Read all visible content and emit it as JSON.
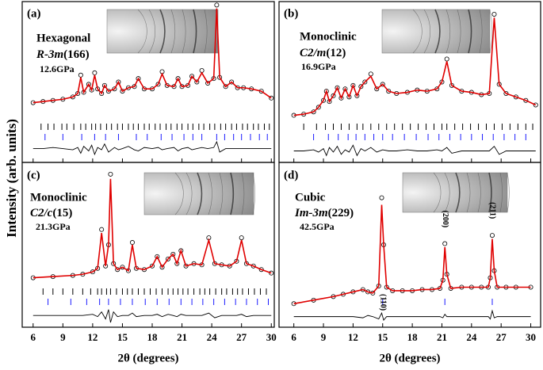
{
  "figure": {
    "ylabel": "Intensity (arb. units)"
  },
  "chart_data": [
    {
      "type": "line",
      "label": "(a)",
      "phase": "Hexagonal",
      "space_group": "R-3m",
      "space_group_number": "(166)",
      "pressure": "12.6GPa",
      "xlim": [
        4.9,
        30.3
      ],
      "xticks": [
        6,
        9,
        12,
        15,
        18,
        21,
        24,
        27,
        30
      ],
      "show_tick_labels": false,
      "ylim": [
        -40,
        100
      ],
      "x": [
        6,
        7,
        8,
        9,
        10,
        10.5,
        10.8,
        11.1,
        11.6,
        11.9,
        12.2,
        12.5,
        12.9,
        13.2,
        13.6,
        14.2,
        14.6,
        15,
        15.6,
        16.2,
        16.6,
        17.2,
        18,
        18.6,
        19,
        19.5,
        20.2,
        20.6,
        21,
        21.6,
        22,
        22.5,
        23,
        23.6,
        24.2,
        24.5,
        24.8,
        25.4,
        26,
        26.6,
        27.2,
        28,
        29,
        30
      ],
      "series": [
        {
          "color": "#000000",
          "marker": "circle",
          "values": [
            12,
            13,
            14,
            15,
            17,
            20,
            36,
            21,
            28,
            23,
            38,
            24,
            20,
            27,
            22,
            24,
            30,
            22,
            25,
            26,
            33,
            24,
            24,
            28,
            39,
            27,
            26,
            33,
            26,
            27,
            35,
            30,
            40,
            29,
            33,
            97,
            34,
            26,
            30,
            25,
            25,
            24,
            22,
            16
          ]
        },
        {
          "color": "#e00000",
          "marker": "line",
          "values": [
            12,
            13,
            14,
            15,
            17,
            20,
            34,
            21,
            28,
            23,
            36,
            24,
            20,
            27,
            22,
            24,
            30,
            22,
            25,
            26,
            33,
            24,
            24,
            28,
            37,
            27,
            26,
            33,
            26,
            27,
            35,
            30,
            38,
            29,
            33,
            94,
            34,
            26,
            30,
            25,
            25,
            24,
            22,
            16
          ]
        },
        {
          "color": "#000000",
          "marker": "line",
          "values": [
            -28,
            -28,
            -27,
            -28,
            -29,
            -27,
            -32,
            -26,
            -30,
            -25,
            -33,
            -27,
            -29,
            -24,
            -31,
            -27,
            -29,
            -28,
            -26,
            -29,
            -30,
            -27,
            -28,
            -27,
            -29,
            -28,
            -27,
            -30,
            -28,
            -27,
            -29,
            -28,
            -27,
            -28,
            -27,
            -22,
            -31,
            -28,
            -28,
            -28,
            -28,
            -28,
            -28,
            -28
          ]
        }
      ],
      "reflections": [
        {
          "color": "#000000",
          "x": [
            6.8,
            7.5,
            8.1,
            8.9,
            9.4,
            10.1,
            10.8,
            11.3,
            11.9,
            12.3,
            12.8,
            13.4,
            13.9,
            14.5,
            15.0,
            15.6,
            16.1,
            16.6,
            17.2,
            17.7,
            18.3,
            18.8,
            19.4,
            19.9,
            20.5,
            21.0,
            21.6,
            22.1,
            22.7,
            23.2,
            23.8,
            24.3,
            24.9,
            25.4,
            26.0,
            26.5,
            27.1,
            27.6,
            28.2,
            28.7,
            29.3,
            29.8
          ]
        },
        {
          "color": "#1c1cff",
          "x": [
            7.2,
            9.0,
            10.9,
            12.2,
            13.3,
            14.6,
            16.4,
            17.5,
            18.9,
            20.0,
            21.2,
            22.1,
            23.0,
            24.5,
            25.3,
            26.2,
            27.0,
            27.9,
            28.8,
            29.6
          ]
        }
      ]
    },
    {
      "type": "line",
      "label": "(b)",
      "phase": "Monoclinic",
      "space_group": "C2/m",
      "space_group_number": "(12)",
      "pressure": "16.9GPa",
      "xlim": [
        4.5,
        31
      ],
      "xticks": [
        6,
        9,
        12,
        15,
        18,
        21,
        24,
        27,
        30
      ],
      "show_tick_labels": false,
      "ylim": [
        -40,
        100
      ],
      "x": [
        6,
        7,
        8,
        8.5,
        9,
        9.3,
        9.6,
        10,
        10.4,
        10.8,
        11.2,
        11.6,
        12,
        12.4,
        12.8,
        13.2,
        13.8,
        14.4,
        15,
        15.6,
        16.4,
        17.5,
        18.5,
        19.5,
        20.5,
        21,
        21.5,
        22,
        23,
        24,
        25,
        25.8,
        26.3,
        26.8,
        27.5,
        28.5,
        29.5,
        30.5
      ],
      "series": [
        {
          "color": "#000000",
          "marker": "circle",
          "values": [
            1,
            2,
            4,
            8,
            14,
            22,
            13,
            18,
            25,
            16,
            24,
            17,
            27,
            18,
            26,
            30,
            37,
            24,
            28,
            22,
            20,
            21,
            23,
            22,
            24,
            30,
            50,
            27,
            22,
            21,
            19,
            20,
            89,
            28,
            20,
            17,
            14,
            10
          ]
        },
        {
          "color": "#e00000",
          "marker": "line",
          "values": [
            1,
            2,
            4,
            8,
            14,
            22,
            13,
            18,
            25,
            16,
            24,
            17,
            27,
            18,
            26,
            30,
            35,
            24,
            28,
            22,
            20,
            21,
            23,
            22,
            24,
            30,
            48,
            27,
            22,
            21,
            19,
            20,
            86,
            28,
            20,
            17,
            14,
            10
          ]
        },
        {
          "color": "#000000",
          "marker": "line",
          "values": [
            -30,
            -30,
            -29,
            -31,
            -28,
            -34,
            -27,
            -31,
            -26,
            -33,
            -29,
            -31,
            -25,
            -34,
            -28,
            -30,
            -27,
            -31,
            -29,
            -30,
            -30,
            -29,
            -30,
            -30,
            -29,
            -30,
            -27,
            -32,
            -30,
            -30,
            -30,
            -30,
            -26,
            -33,
            -30,
            -30,
            -30,
            -30
          ]
        }
      ],
      "reflections": [
        {
          "color": "#000000",
          "x": [
            7.0,
            8.3,
            9.2,
            10.0,
            10.8,
            11.6,
            12.4,
            13.0,
            13.8,
            14.6,
            15.4,
            16.2,
            17.0,
            17.8,
            18.6,
            19.4,
            20.2,
            21.0,
            21.5,
            22.3,
            23.1,
            23.9,
            24.7,
            25.5,
            26.3,
            27.1,
            27.9,
            28.7,
            29.5,
            30.2
          ]
        },
        {
          "color": "#1c1cff",
          "x": [
            8.0,
            9.5,
            10.5,
            11.5,
            12.3,
            13.2,
            14.1,
            15.0,
            16.0,
            17.2,
            18.4,
            19.6,
            20.7,
            21.8,
            22.9,
            24.0,
            25.1,
            26.2,
            27.3,
            28.4,
            29.5
          ]
        }
      ]
    },
    {
      "type": "line",
      "label": "(c)",
      "phase": "Monoclinic",
      "space_group": "C2/c",
      "space_group_number": "(15)",
      "pressure": "21.3GPa",
      "xlim": [
        4.9,
        30.3
      ],
      "xticks": [
        6,
        9,
        12,
        15,
        18,
        21,
        24,
        27,
        30
      ],
      "show_tick_labels": true,
      "xlabel": "2θ  (degrees)",
      "ylim": [
        -40,
        100
      ],
      "x": [
        6,
        8,
        10,
        11,
        12,
        12.5,
        12.9,
        13.3,
        13.6,
        13.8,
        14.1,
        14.5,
        15,
        15.6,
        16,
        16.4,
        17.2,
        18,
        18.5,
        19,
        19.6,
        20.1,
        20.5,
        20.9,
        21.4,
        22.2,
        23,
        23.7,
        24.3,
        25,
        25.8,
        26.5,
        27,
        27.5,
        28.2,
        29,
        30
      ],
      "series": [
        {
          "color": "#000000",
          "marker": "circle",
          "values": [
            2,
            3,
            4,
            5,
            7,
            10,
            43,
            12,
            30,
            90,
            14,
            9,
            11,
            8,
            32,
            10,
            9,
            12,
            20,
            11,
            18,
            22,
            14,
            25,
            12,
            14,
            13,
            36,
            14,
            13,
            12,
            16,
            36,
            14,
            12,
            9,
            6
          ]
        },
        {
          "color": "#e00000",
          "marker": "line",
          "values": [
            2,
            3,
            4,
            5,
            7,
            10,
            40,
            12,
            30,
            86,
            14,
            9,
            11,
            8,
            30,
            10,
            9,
            12,
            20,
            11,
            18,
            22,
            14,
            25,
            12,
            14,
            13,
            34,
            14,
            13,
            12,
            16,
            34,
            14,
            12,
            9,
            6
          ]
        },
        {
          "color": "#000000",
          "marker": "line",
          "values": [
            -30,
            -30,
            -30,
            -30,
            -29,
            -31,
            -27,
            -33,
            -25,
            -36,
            -27,
            -31,
            -30,
            -30,
            -28,
            -31,
            -30,
            -30,
            -29,
            -31,
            -29,
            -30,
            -31,
            -29,
            -30,
            -30,
            -30,
            -28,
            -32,
            -30,
            -30,
            -30,
            -29,
            -31,
            -30,
            -30,
            -30
          ]
        }
      ],
      "reflections": [
        {
          "color": "#000000",
          "x": [
            7.0,
            8.0,
            9.0,
            10.0,
            11.0,
            11.8,
            12.5,
            12.9,
            13.4,
            13.8,
            14.4,
            15.0,
            15.5,
            16.0,
            16.6,
            17.2,
            17.8,
            18.4,
            19.0,
            19.6,
            20.1,
            20.6,
            21.1,
            21.6,
            22.2,
            22.8,
            23.3,
            23.8,
            24.4,
            25.0,
            25.5,
            26.1,
            26.6,
            27.1,
            27.7,
            28.3,
            28.9,
            29.5
          ]
        },
        {
          "color": "#1c1cff",
          "x": [
            7.5,
            9.8,
            11.4,
            12.7,
            13.6,
            14.8,
            16.0,
            17.3,
            18.5,
            19.7,
            20.9,
            22.0,
            23.1,
            24.2,
            25.3,
            26.4,
            27.5,
            28.6,
            29.7
          ]
        }
      ]
    },
    {
      "type": "line",
      "label": "(d)",
      "phase": "Cubic",
      "space_group": "Im-3m",
      "space_group_number": "(229)",
      "pressure": "42.5GPa",
      "xlim": [
        4.5,
        31
      ],
      "xticks": [
        6,
        9,
        12,
        15,
        18,
        21,
        24,
        27,
        30
      ],
      "show_tick_labels": true,
      "xlabel": "2θ  (degrees)",
      "ylim": [
        -40,
        100
      ],
      "x": [
        6,
        8,
        10,
        11,
        12,
        13,
        13.5,
        14,
        14.6,
        14.9,
        15.1,
        15.4,
        16,
        17,
        18,
        19,
        20,
        20.8,
        21.1,
        21.3,
        21.5,
        21.9,
        23,
        24,
        25,
        25.7,
        25.9,
        26.1,
        26.3,
        26.6,
        27.5,
        28.5,
        30
      ],
      "series": [
        {
          "color": "#000000",
          "marker": "circle",
          "values": [
            -20,
            -17,
            -14,
            -12,
            -10,
            -8,
            -10,
            -11,
            -5,
            70,
            30,
            -6,
            -9,
            -9,
            -9,
            -8,
            -8,
            -7,
            0,
            31,
            5,
            -7,
            -6,
            -6,
            -6,
            -6,
            2,
            38,
            8,
            -6,
            -6,
            -6,
            -6
          ]
        },
        {
          "color": "#e00000",
          "marker": "line",
          "values": [
            -20,
            -17,
            -14,
            -12,
            -10,
            -8,
            -10,
            -11,
            -5,
            64,
            30,
            -6,
            -9,
            -9,
            -9,
            -8,
            -8,
            -7,
            0,
            28,
            5,
            -7,
            -6,
            -6,
            -6,
            -6,
            2,
            35,
            8,
            -6,
            -6,
            -6,
            -6
          ]
        },
        {
          "color": "#000000",
          "marker": "line",
          "values": [
            -31,
            -31,
            -31,
            -31,
            -31,
            -32,
            -30,
            -31,
            -33,
            -28,
            -34,
            -31,
            -31,
            -31,
            -31,
            -31,
            -31,
            -31,
            -32,
            -29,
            -31,
            -31,
            -31,
            -31,
            -31,
            -31,
            -33,
            -26,
            -32,
            -31,
            -31,
            -31,
            -31
          ]
        }
      ],
      "reflections": [
        {
          "color": "#1c1cff",
          "x": [
            15.0,
            21.3,
            26.1
          ]
        }
      ],
      "peak_labels": [
        {
          "x": 15.0,
          "label": "(110)"
        },
        {
          "x": 21.3,
          "label": "(200)"
        },
        {
          "x": 26.1,
          "label": "(211)"
        }
      ]
    }
  ]
}
